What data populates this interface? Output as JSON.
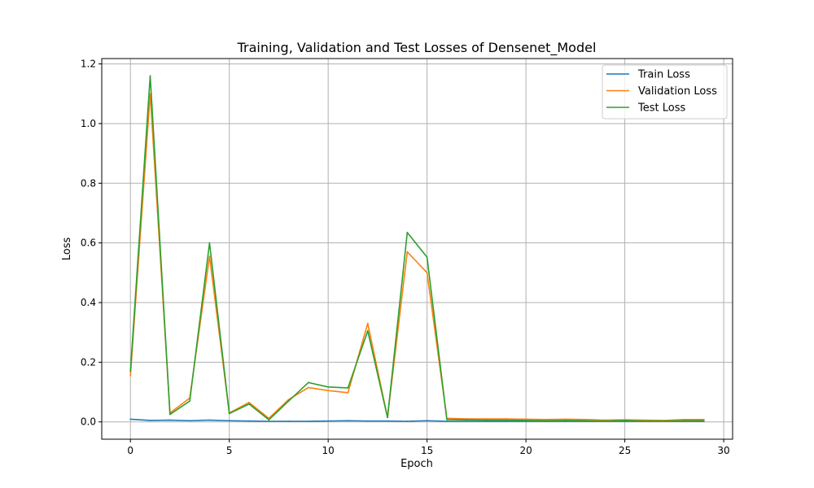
{
  "chart_data": {
    "type": "line",
    "title": "Training, Validation and Test Losses of Densenet_Model",
    "xlabel": "Epoch",
    "ylabel": "Loss",
    "xlim": [
      -1.45,
      30.45
    ],
    "ylim": [
      -0.058,
      1.218
    ],
    "xticks": [
      0,
      5,
      10,
      15,
      20,
      25,
      30
    ],
    "yticks": [
      0.0,
      0.2,
      0.4,
      0.6,
      0.8,
      1.0,
      1.2
    ],
    "grid": true,
    "legend_position": "top-right",
    "x": [
      0,
      1,
      2,
      3,
      4,
      5,
      6,
      7,
      8,
      9,
      10,
      11,
      12,
      13,
      14,
      15,
      16,
      17,
      18,
      19,
      20,
      21,
      22,
      23,
      24,
      25,
      26,
      27,
      28,
      29
    ],
    "series": [
      {
        "name": "Train Loss",
        "color": "#1f77b4",
        "values": [
          0.009,
          0.005,
          0.006,
          0.004,
          0.006,
          0.004,
          0.003,
          0.002,
          0.002,
          0.002,
          0.003,
          0.004,
          0.003,
          0.003,
          0.002,
          0.004,
          0.002,
          0.002,
          0.002,
          0.002,
          0.002,
          0.002,
          0.002,
          0.002,
          0.002,
          0.002,
          0.002,
          0.002,
          0.002,
          0.002
        ]
      },
      {
        "name": "Validation Loss",
        "color": "#ff7f0e",
        "values": [
          0.155,
          1.1,
          0.03,
          0.08,
          0.555,
          0.03,
          0.065,
          0.012,
          0.075,
          0.115,
          0.105,
          0.098,
          0.33,
          0.015,
          0.57,
          0.5,
          0.012,
          0.01,
          0.01,
          0.01,
          0.009,
          0.008,
          0.009,
          0.008,
          0.006,
          0.007,
          0.006,
          0.005,
          0.008,
          0.008
        ]
      },
      {
        "name": "Test Loss",
        "color": "#2ca02c",
        "values": [
          0.17,
          1.16,
          0.025,
          0.07,
          0.6,
          0.028,
          0.06,
          0.007,
          0.07,
          0.132,
          0.117,
          0.114,
          0.305,
          0.015,
          0.635,
          0.552,
          0.008,
          0.007,
          0.006,
          0.006,
          0.005,
          0.004,
          0.005,
          0.004,
          0.003,
          0.005,
          0.003,
          0.003,
          0.004,
          0.004
        ]
      }
    ]
  }
}
